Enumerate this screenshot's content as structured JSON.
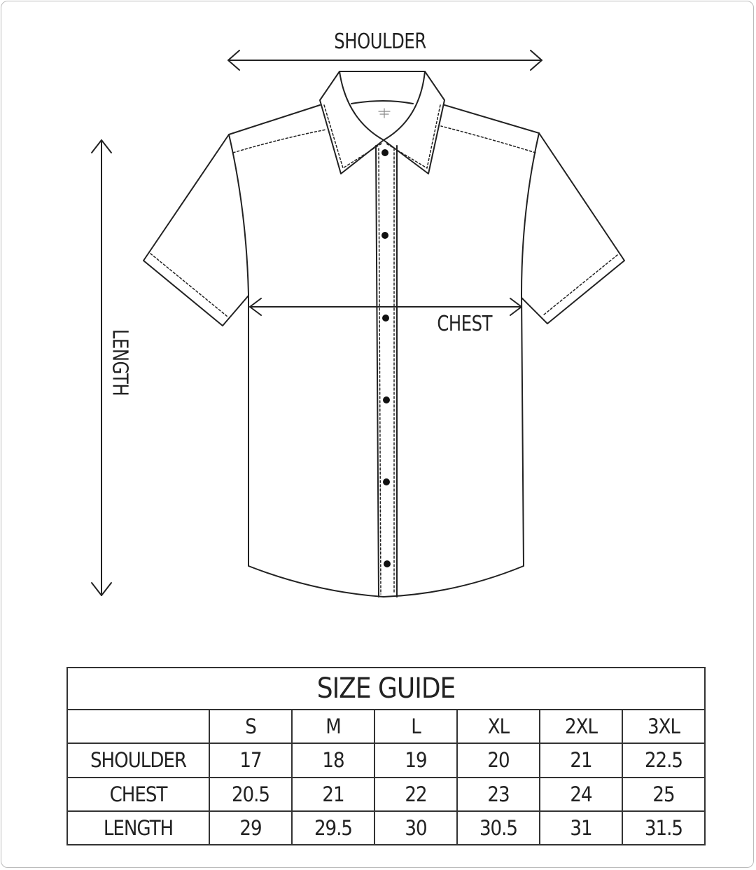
{
  "diagram": {
    "shoulder_label": "SHOULDER",
    "chest_label": "CHEST",
    "length_label": "LENGTH"
  },
  "size_guide": {
    "title": "SIZE GUIDE",
    "sizes": [
      "S",
      "M",
      "L",
      "XL",
      "2XL",
      "3XL"
    ],
    "rows": [
      {
        "label": "SHOULDER",
        "values": [
          "17",
          "18",
          "19",
          "20",
          "21",
          "22.5"
        ]
      },
      {
        "label": "CHEST",
        "values": [
          "20.5",
          "21",
          "22",
          "23",
          "24",
          "25"
        ]
      },
      {
        "label": "LENGTH",
        "values": [
          "29",
          "29.5",
          "30",
          "30.5",
          "31",
          "31.5"
        ]
      }
    ]
  }
}
